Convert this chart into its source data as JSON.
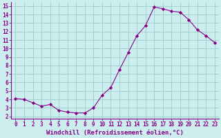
{
  "x": [
    0,
    1,
    2,
    3,
    4,
    5,
    6,
    7,
    8,
    9,
    10,
    11,
    12,
    13,
    14,
    15,
    16,
    17,
    18,
    19,
    20,
    21,
    22,
    23
  ],
  "y": [
    4.1,
    4.0,
    3.6,
    3.2,
    3.4,
    2.7,
    2.5,
    2.4,
    2.4,
    3.0,
    4.5,
    5.4,
    7.5,
    9.5,
    11.5,
    12.7,
    14.9,
    14.7,
    14.4,
    14.3,
    13.4,
    12.2,
    11.5,
    10.7
  ],
  "line_color": "#880088",
  "marker": "D",
  "marker_size": 2.2,
  "bg_color": "#cceeee",
  "grid_color": "#99cccc",
  "xlabel": "Windchill (Refroidissement éolien,°C)",
  "ylabel": "",
  "xlim": [
    -0.5,
    23.5
  ],
  "ylim": [
    1.7,
    15.5
  ],
  "yticks": [
    2,
    3,
    4,
    5,
    6,
    7,
    8,
    9,
    10,
    11,
    12,
    13,
    14,
    15
  ],
  "xticks": [
    0,
    1,
    2,
    3,
    4,
    5,
    6,
    7,
    8,
    9,
    10,
    11,
    12,
    13,
    14,
    15,
    16,
    17,
    18,
    19,
    20,
    21,
    22,
    23
  ],
  "axis_color": "#880088",
  "tick_color": "#880088",
  "tick_fontsize": 5.5,
  "xlabel_fontsize": 6.5
}
